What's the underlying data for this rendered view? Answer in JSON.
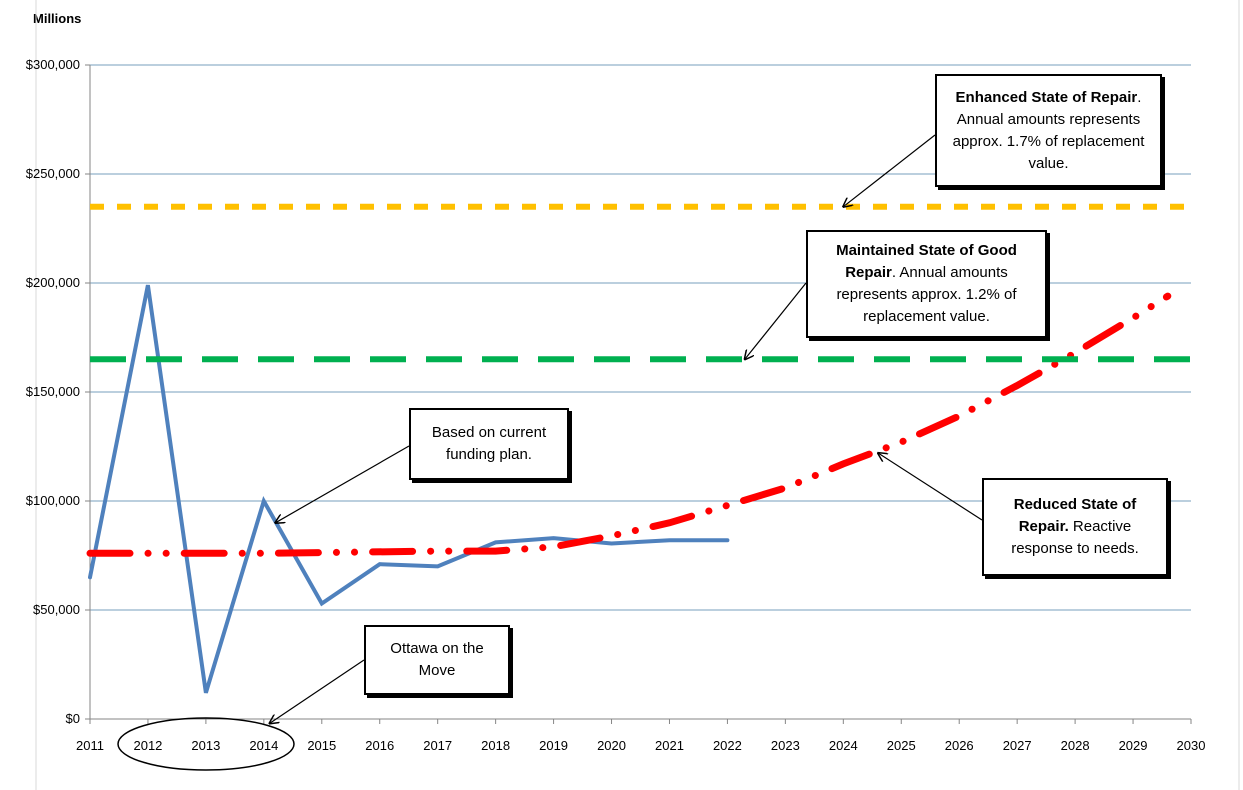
{
  "units_label": "Millions",
  "chart_data": {
    "type": "line",
    "x": [
      2011,
      2012,
      2013,
      2014,
      2015,
      2016,
      2017,
      2018,
      2019,
      2020,
      2021,
      2022,
      2023,
      2024,
      2025,
      2026,
      2027,
      2028,
      2029,
      2030
    ],
    "x_tick_labels": [
      "2011",
      "2012",
      "2013",
      "2014",
      "2015",
      "2016",
      "2017",
      "2018",
      "2019",
      "2020",
      "2021",
      "2022",
      "2023",
      "2024",
      "2025",
      "2026",
      "2027",
      "2028",
      "2029",
      "2030"
    ],
    "y_tick_labels": [
      "$0",
      "$50,000",
      "$100,000",
      "$150,000",
      "$200,000",
      "$250,000",
      "$300,000"
    ],
    "ylim": [
      0,
      300000
    ],
    "grid": true,
    "series": [
      {
        "color": "#4f81bd",
        "style": "solid",
        "x": [
          2011,
          2012,
          2013,
          2014,
          2015,
          2016,
          2017,
          2018,
          2019,
          2020,
          2021,
          2022
        ],
        "values": [
          65000,
          199000,
          12000,
          100000,
          53000,
          71000,
          70000,
          81000,
          83000,
          80500,
          82000,
          82000
        ]
      },
      {
        "color": "#ff0000",
        "style": "dash-dot",
        "x": [
          2011,
          2014,
          2017,
          2018,
          2019,
          2020,
          2021,
          2022,
          2023,
          2024,
          2025,
          2026,
          2027,
          2028,
          2029,
          2029.6
        ],
        "values": [
          76000,
          76000,
          77000,
          77000,
          79000,
          84000,
          90000,
          98000,
          106000,
          117000,
          127000,
          139000,
          153000,
          168000,
          184000,
          194000
        ]
      },
      {
        "color": "#00b050",
        "style": "dashed",
        "x": [
          2011,
          2030
        ],
        "values": [
          165000,
          165000
        ]
      },
      {
        "color": "#ffc000",
        "style": "dashed",
        "x": [
          2011,
          2030
        ],
        "values": [
          235000,
          235000
        ]
      }
    ],
    "annotations": [
      {
        "id": "enhanced",
        "bold": "Enhanced State of Repair",
        "text": ". Annual amounts represents approx. 1.7% of replacement value.",
        "arrow_to": [
          2024,
          235000
        ]
      },
      {
        "id": "maintained",
        "bold": "Maintained State of Good Repair",
        "text": ".  Annual amounts represents approx. 1.2% of replacement value.",
        "arrow_to": [
          2022.3,
          165000
        ]
      },
      {
        "id": "funding",
        "bold": "",
        "text": "Based on current funding plan.",
        "arrow_to": [
          2014.2,
          90000
        ]
      },
      {
        "id": "reduced",
        "bold": "Reduced State of Repair.",
        "text": " Reactive response to needs.",
        "arrow_to": [
          2024.6,
          122000
        ]
      },
      {
        "id": "ottawa",
        "bold": "",
        "text": "Ottawa on the Move",
        "arrow_to": [
          2014.1,
          -2000
        ]
      }
    ],
    "highlighted_x_range": [
      "2012",
      "2014"
    ]
  }
}
